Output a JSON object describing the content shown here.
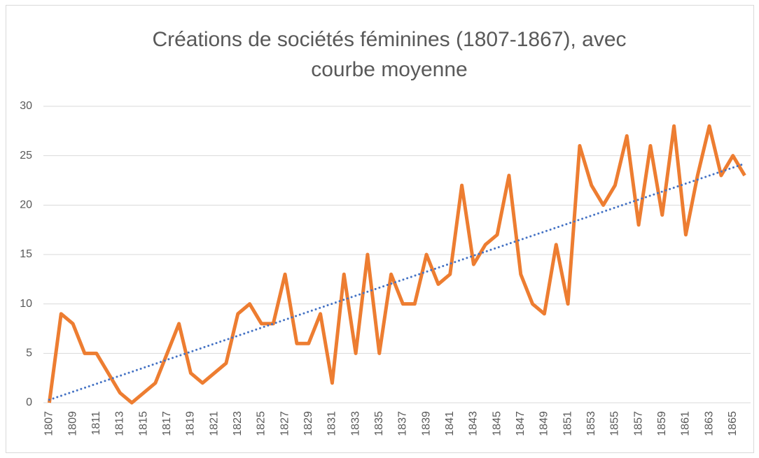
{
  "chart_data": {
    "type": "line",
    "title": [
      "Créations de sociétés féminines (1807-1867), avec",
      "courbe moyenne"
    ],
    "categories": [
      "1807",
      null,
      "1809",
      null,
      "1811",
      null,
      "1813",
      null,
      "1815",
      null,
      "1817",
      null,
      "1819",
      null,
      "1821",
      null,
      "1823",
      null,
      "1825",
      null,
      "1827",
      null,
      "1829",
      null,
      "1831",
      null,
      "1833",
      null,
      "1835",
      null,
      "1837",
      null,
      "1839",
      null,
      "1841",
      null,
      "1843",
      null,
      "1845",
      null,
      "1847",
      null,
      "1849",
      null,
      "1851",
      null,
      "1853",
      null,
      "1855",
      null,
      "1857",
      null,
      "1859",
      null,
      "1861",
      null,
      "1863",
      null,
      "1865",
      null
    ],
    "series": [
      {
        "color": "#ed7d31",
        "values": [
          0,
          9,
          8,
          5,
          5,
          3,
          1,
          0,
          1,
          2,
          5,
          8,
          3,
          2,
          3,
          4,
          9,
          10,
          8,
          8,
          13,
          6,
          6,
          9,
          2,
          13,
          5,
          15,
          5,
          13,
          10,
          10,
          15,
          12,
          13,
          22,
          14,
          16,
          17,
          23,
          13,
          10,
          9,
          16,
          10,
          26,
          22,
          20,
          22,
          27,
          18,
          26,
          19,
          28,
          17,
          23,
          28,
          23,
          25,
          23
        ]
      }
    ],
    "trendline": {
      "color": "#4472c4",
      "values": [
        0.3,
        24.2
      ]
    },
    "ylim": [
      0,
      30
    ],
    "yticks": [
      0,
      5,
      10,
      15,
      20,
      25,
      30
    ],
    "grid": true
  }
}
